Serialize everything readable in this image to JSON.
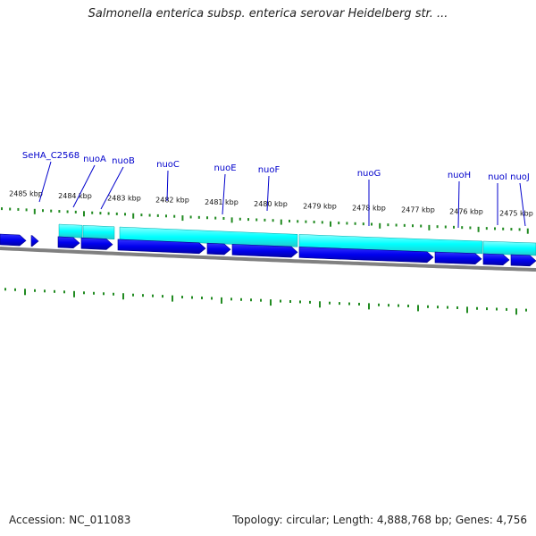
{
  "title": "Salmonella enterica subsp. enterica serovar Heidelberg str. ...",
  "footer": {
    "accession": "Accession: NC_011083",
    "summary": "Topology: circular; Length: 4,888,768 bp; Genes: 4,756"
  },
  "scale_labels": [
    "2485 kbp",
    "2484 kbp",
    "2483 kbp",
    "2482 kbp",
    "2481 kbp",
    "2480 kbp",
    "2479 kbp",
    "2478 kbp",
    "2477 kbp",
    "2476 kbp",
    "2475 kbp"
  ],
  "gene_labels": [
    "SeHA_C2568",
    "nuoA",
    "nuoB",
    "nuoC",
    "nuoE",
    "nuoF",
    "nuoG",
    "nuoH",
    "nuoI",
    "nuoJ"
  ],
  "colors": {
    "gene_label": "#0000cc",
    "cds_forward": "#00ffff",
    "cds_reverse": "#0000ee",
    "backbone": "#808080",
    "ticks": "#228b22"
  }
}
